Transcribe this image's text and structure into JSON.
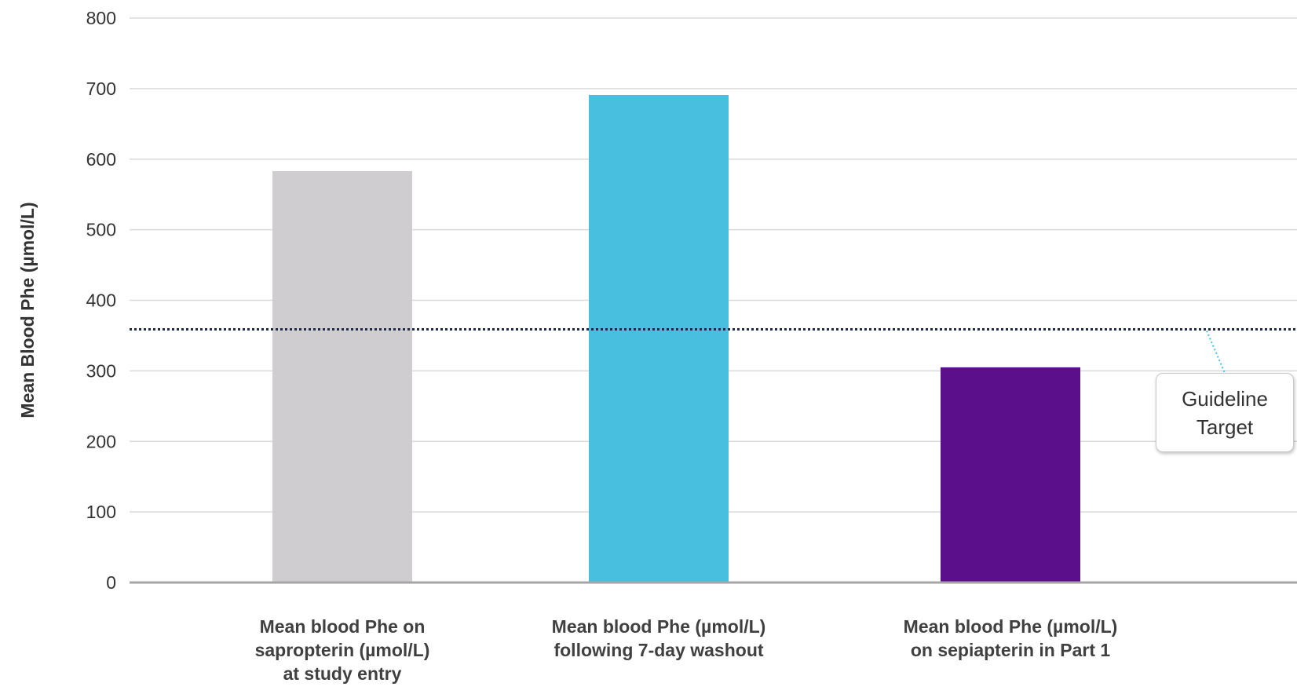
{
  "chart_data": {
    "type": "bar",
    "categories": [
      [
        "Mean blood Phe on",
        "sapropterin (µmol/L)",
        "at study entry"
      ],
      [
        "Mean blood Phe (µmol/L)",
        "following 7-day washout"
      ],
      [
        "Mean blood Phe (µmol/L)",
        "on sepiapterin in Part 1"
      ]
    ],
    "values": [
      583,
      691,
      305
    ],
    "colors": [
      "#cfcdcf",
      "#49bfdf",
      "#5c0f8b"
    ],
    "ylabel": "Mean Blood Phe (µmol/L)",
    "ylim": [
      0,
      800
    ],
    "yticks": [
      "0",
      "100",
      "200",
      "300",
      "400",
      "500",
      "600",
      "700",
      "800"
    ],
    "grid": true,
    "reference_line": {
      "value": 360,
      "style": "dotted",
      "color": "#1f2a44"
    },
    "annotation": {
      "lines": [
        "Guideline",
        "Target"
      ]
    }
  }
}
